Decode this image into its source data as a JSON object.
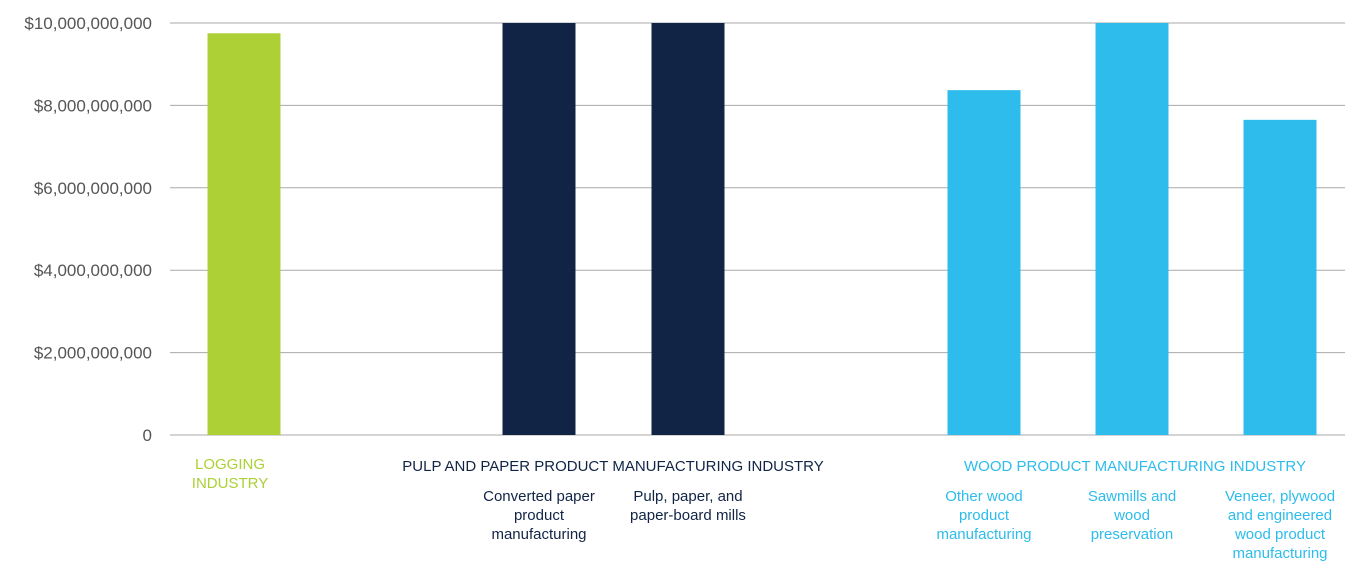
{
  "chart_data": {
    "type": "bar",
    "ylim": [
      0,
      10000000000
    ],
    "yticks": [
      "0",
      "$2,000,000,000",
      "$4,000,000,000",
      "$6,000,000,000",
      "$8,000,000,000",
      "$10,000,000,000"
    ],
    "yticks_values": [
      0,
      2000000000,
      4000000000,
      6000000000,
      8000000000,
      10000000000
    ],
    "grid": true,
    "groups": [
      {
        "name": "LOGGING INDUSTRY",
        "color": "#acd036",
        "categories": [
          ""
        ],
        "values": [
          9750000000
        ]
      },
      {
        "name": "PULP AND PAPER PRODUCT MANUFACTURING INDUSTRY",
        "color": "#112445",
        "categories": [
          "Converted paper product manufacturing",
          "Pulp, paper, and paper-board mills"
        ],
        "values": [
          10000000000,
          10000000000
        ]
      },
      {
        "name": "WOOD PRODUCT MANUFACTURING INDUSTRY",
        "color": "#2dbcec",
        "categories": [
          "Other wood product manufacturing",
          "Sawmills and wood preservation",
          "Veneer, plywood and engineered wood product manufacturing"
        ],
        "values": [
          8370000000,
          10000000000,
          7650000000
        ]
      }
    ]
  },
  "labels": {
    "logging_group": "LOGGING INDUSTRY",
    "pulp_group": "PULP AND PAPER PRODUCT MANUFACTURING INDUSTRY",
    "wood_group": "WOOD PRODUCT MANUFACTURING INDUSTRY",
    "converted": "Converted paper product manufacturing",
    "pulp_mills": "Pulp, paper, and paper-board mills",
    "other_wood": "Other wood product manufacturing",
    "sawmills": "Sawmills and wood preservation",
    "veneer": "Veneer, plywood and engineered wood product manufacturing"
  },
  "colors": {
    "logging": "#acd036",
    "pulp": "#112445",
    "wood": "#2dbcec",
    "grid": "#aaaaaa"
  }
}
